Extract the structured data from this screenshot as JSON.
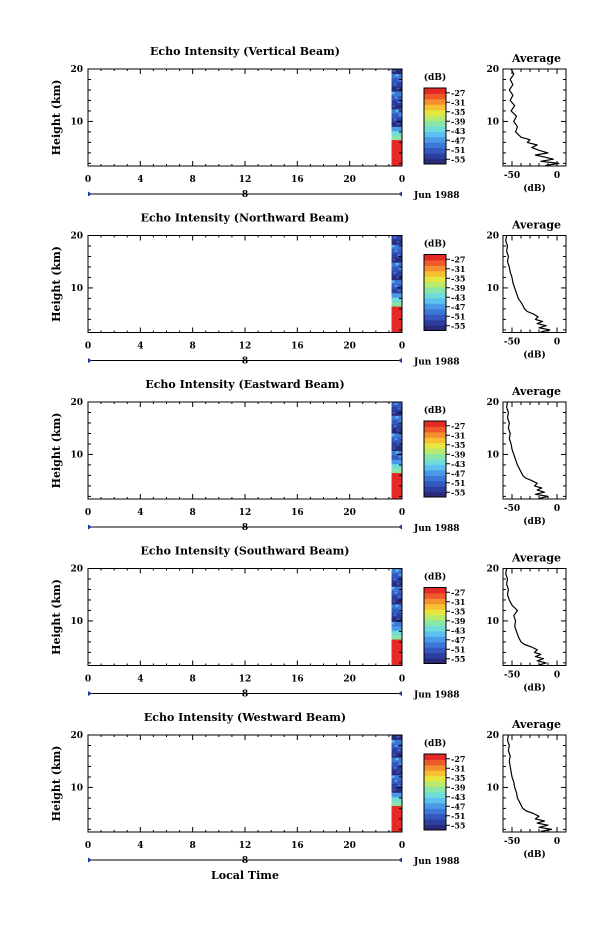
{
  "chart_data": {
    "type": "heatmap",
    "xlabel": "Local Time",
    "date_label": "Jun 1988",
    "day_label": "8",
    "time_ticks": [
      0,
      4,
      8,
      12,
      16,
      20,
      0
    ],
    "xlim_hours": [
      0,
      24
    ],
    "height_ticks": [
      10,
      20
    ],
    "ylim_km": [
      1.5,
      20
    ],
    "ylabel": "Height (km)",
    "colorbar": {
      "unit": "(dB)",
      "ticks": [
        -27,
        -31,
        -35,
        -39,
        -43,
        -47,
        -51,
        -55
      ],
      "range": [
        -57,
        -25
      ],
      "colors": [
        "#2a2a7a",
        "#2d3f9e",
        "#3558c0",
        "#3d78d8",
        "#4a9ae8",
        "#5cc0f0",
        "#70dcd8",
        "#8ae6a8",
        "#b8ea70",
        "#e6e640",
        "#f6c030",
        "#f49030",
        "#ee5a2a",
        "#e42a26"
      ]
    },
    "data_column": {
      "time_hours": [
        23.2,
        24
      ],
      "note_levels_dB": [
        -26,
        -33,
        -40,
        -45,
        -50,
        -55
      ]
    },
    "avg_panel": {
      "title": "Average",
      "xlabel": "(dB)",
      "xticks": [
        -50,
        0
      ],
      "xlim": [
        -60,
        10
      ],
      "yticks": [
        10,
        20
      ]
    },
    "panels": [
      {
        "title": "Echo Intensity (Vertical Beam)",
        "avg_profile": [
          [
            1.6,
            -13
          ],
          [
            2.0,
            2
          ],
          [
            2.4,
            -18
          ],
          [
            2.8,
            -4
          ],
          [
            3.2,
            -14
          ],
          [
            3.6,
            -24
          ],
          [
            4.0,
            -10
          ],
          [
            4.5,
            -20
          ],
          [
            5.0,
            -28
          ],
          [
            5.5,
            -22
          ],
          [
            6.0,
            -33
          ],
          [
            6.5,
            -30
          ],
          [
            7.0,
            -40
          ],
          [
            7.5,
            -43
          ],
          [
            8.0,
            -46
          ],
          [
            9.0,
            -44
          ],
          [
            10.0,
            -48
          ],
          [
            11.0,
            -45
          ],
          [
            12.0,
            -51
          ],
          [
            13.0,
            -47
          ],
          [
            14.0,
            -52
          ],
          [
            15.0,
            -49
          ],
          [
            16.0,
            -53
          ],
          [
            17.0,
            -49
          ],
          [
            18.0,
            -52
          ],
          [
            19.0,
            -48
          ],
          [
            20.0,
            -51
          ]
        ]
      },
      {
        "title": "Echo Intensity (Northward Beam)",
        "avg_profile": [
          [
            1.6,
            -18
          ],
          [
            2.0,
            -8
          ],
          [
            2.4,
            -20
          ],
          [
            2.8,
            -12
          ],
          [
            3.2,
            -22
          ],
          [
            3.6,
            -16
          ],
          [
            4.0,
            -24
          ],
          [
            4.5,
            -21
          ],
          [
            5.0,
            -26
          ],
          [
            5.5,
            -33
          ],
          [
            6.0,
            -36
          ],
          [
            7.0,
            -39
          ],
          [
            8.0,
            -43
          ],
          [
            9.0,
            -45
          ],
          [
            10.0,
            -47
          ],
          [
            11.0,
            -49
          ],
          [
            12.0,
            -50
          ],
          [
            13.0,
            -52
          ],
          [
            14.0,
            -53
          ],
          [
            15.0,
            -55
          ],
          [
            16.0,
            -54
          ],
          [
            17.0,
            -56
          ],
          [
            18.0,
            -55
          ],
          [
            19.0,
            -57
          ],
          [
            20.0,
            -56
          ]
        ]
      },
      {
        "title": "Echo Intensity (Eastward Beam)",
        "avg_profile": [
          [
            1.6,
            -20
          ],
          [
            2.0,
            -10
          ],
          [
            2.4,
            -24
          ],
          [
            2.8,
            -14
          ],
          [
            3.2,
            -22
          ],
          [
            3.6,
            -17
          ],
          [
            4.0,
            -25
          ],
          [
            4.5,
            -22
          ],
          [
            5.0,
            -28
          ],
          [
            5.5,
            -35
          ],
          [
            6.0,
            -38
          ],
          [
            7.0,
            -41
          ],
          [
            8.0,
            -44
          ],
          [
            9.0,
            -46
          ],
          [
            10.0,
            -48
          ],
          [
            11.0,
            -50
          ],
          [
            12.0,
            -51
          ],
          [
            13.0,
            -53
          ],
          [
            14.0,
            -52
          ],
          [
            15.0,
            -54
          ],
          [
            16.0,
            -53
          ],
          [
            17.0,
            -55
          ],
          [
            18.0,
            -54
          ],
          [
            19.0,
            -56
          ],
          [
            20.0,
            -55
          ]
        ]
      },
      {
        "title": "Echo Intensity (Southward Beam)",
        "avg_profile": [
          [
            1.6,
            -20
          ],
          [
            2.0,
            -12
          ],
          [
            2.4,
            -22
          ],
          [
            2.8,
            -15
          ],
          [
            3.2,
            -24
          ],
          [
            3.6,
            -18
          ],
          [
            4.0,
            -25
          ],
          [
            4.5,
            -22
          ],
          [
            5.0,
            -28
          ],
          [
            5.5,
            -36
          ],
          [
            6.0,
            -40
          ],
          [
            7.0,
            -43
          ],
          [
            8.0,
            -45
          ],
          [
            9.0,
            -47
          ],
          [
            10.0,
            -46
          ],
          [
            11.0,
            -48
          ],
          [
            12.0,
            -44
          ],
          [
            13.0,
            -50
          ],
          [
            14.0,
            -53
          ],
          [
            15.0,
            -55
          ],
          [
            16.0,
            -54
          ],
          [
            17.0,
            -56
          ],
          [
            18.0,
            -55
          ],
          [
            19.0,
            -57
          ],
          [
            20.0,
            -56
          ]
        ]
      },
      {
        "title": "Echo Intensity (Westward Beam)",
        "avg_profile": [
          [
            1.6,
            -18
          ],
          [
            2.0,
            -6
          ],
          [
            2.4,
            -20
          ],
          [
            2.8,
            -10
          ],
          [
            3.2,
            -22
          ],
          [
            3.6,
            -14
          ],
          [
            4.0,
            -24
          ],
          [
            4.5,
            -20
          ],
          [
            5.0,
            -26
          ],
          [
            5.5,
            -34
          ],
          [
            6.0,
            -38
          ],
          [
            7.0,
            -41
          ],
          [
            8.0,
            -44
          ],
          [
            9.0,
            -45
          ],
          [
            10.0,
            -47
          ],
          [
            11.0,
            -48
          ],
          [
            12.0,
            -50
          ],
          [
            13.0,
            -51
          ],
          [
            14.0,
            -52
          ],
          [
            15.0,
            -53
          ],
          [
            16.0,
            -52
          ],
          [
            17.0,
            -54
          ],
          [
            18.0,
            -53
          ],
          [
            19.0,
            -55
          ],
          [
            20.0,
            -54
          ]
        ]
      }
    ]
  }
}
